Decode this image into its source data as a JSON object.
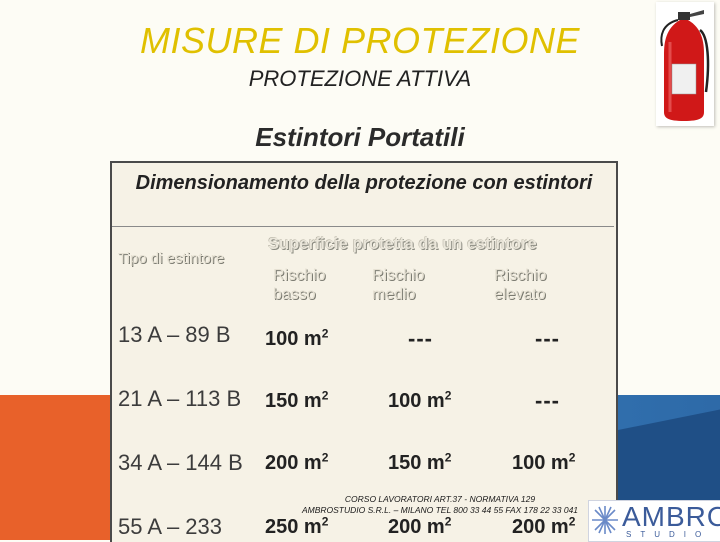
{
  "header": {
    "title": "MISURE DI PROTEZIONE",
    "subtitle": "PROTEZIONE ATTIVA",
    "section": "Estintori  Portatili"
  },
  "table": {
    "caption": "Dimensionamento della protezione con estintori",
    "col_type": "Tipo di estintore",
    "col_group": "Superficie protetta da un estintore",
    "risk_levels": [
      "Rischio basso",
      "Rischio medio",
      "Rischio elevato"
    ],
    "rows": [
      {
        "type": "13 A – 89 B",
        "values": [
          "100 m",
          "---",
          "---"
        ]
      },
      {
        "type": "21 A – 113 B",
        "values": [
          "150 m",
          "100 m",
          "---"
        ]
      },
      {
        "type": "34 A – 144 B",
        "values": [
          "200 m",
          "150 m",
          "100 m"
        ]
      },
      {
        "type": "55 A – 233",
        "values": [
          "250 m",
          "200 m",
          "200 m"
        ]
      }
    ],
    "unit_exponent": "2"
  },
  "footer": {
    "line1": "CORSO LAVORATORI ART.37 - NORMATIVA 129",
    "line2": "AMBROSTUDIO S.R.L. – MILANO TEL 800 33 44 55 FAX 178 22 33 041"
  },
  "logo": {
    "name": "AMBRO",
    "sub": "STUDIO"
  },
  "colors": {
    "title": "#e0c000",
    "orange": "#e8612a",
    "blue": "#3a86c6",
    "extinguisher": "#d01818"
  },
  "icons": {
    "extinguisher": "fire-extinguisher-icon",
    "logo_star": "star-burst-icon"
  }
}
